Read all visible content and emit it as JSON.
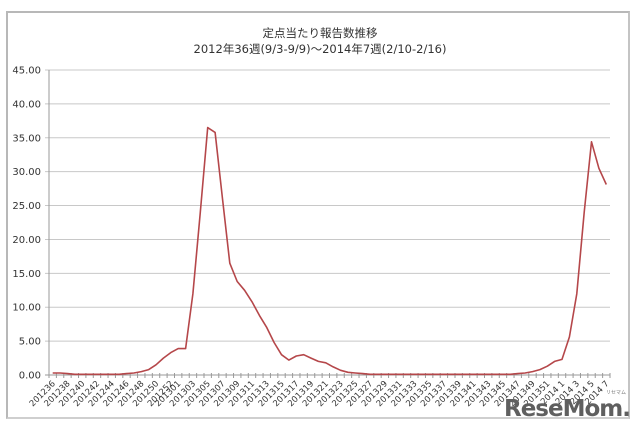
{
  "chart": {
    "title_line1": "定点当たり報告数推移",
    "title_line2": "2012年36週(9/3-9/9)～2014年7週(2/10-2/16)"
  },
  "watermark": {
    "logo_text": "ReseMom.",
    "logo_sub": "リセマム"
  },
  "colors": {
    "line": "#b5474a",
    "grid": "#c8c8c8",
    "axis": "#9a9a9a"
  },
  "chart_data": {
    "type": "line",
    "title": "定点当たり報告数推移 2012年36週(9/3-9/9)～2014年7週(2/10-2/16)",
    "xlabel": "",
    "ylabel": "",
    "ylim": [
      0,
      45
    ],
    "y_ticks": [
      "0.00",
      "5.00",
      "10.00",
      "15.00",
      "20.00",
      "25.00",
      "30.00",
      "35.00",
      "40.00",
      "45.00"
    ],
    "grid": true,
    "legend": "none",
    "x_tick_labels": [
      "201236",
      "201238",
      "201240",
      "201242",
      "201244",
      "201246",
      "201248",
      "201250",
      "201252",
      "201301",
      "201303",
      "201305",
      "201307",
      "201309",
      "201311",
      "201313",
      "201315",
      "201317",
      "201319",
      "201321",
      "201323",
      "201325",
      "201327",
      "201329",
      "201331",
      "201333",
      "201335",
      "201337",
      "201339",
      "201341",
      "201343",
      "201345",
      "201347",
      "201349",
      "201351",
      "2014 1",
      "2014 3",
      "2014 5",
      "2014 7"
    ],
    "categories": [
      "201236",
      "201237",
      "201238",
      "201239",
      "201240",
      "201241",
      "201242",
      "201243",
      "201244",
      "201245",
      "201246",
      "201247",
      "201248",
      "201249",
      "201250",
      "201251",
      "201252",
      "201301",
      "201302",
      "201303",
      "201304",
      "201305",
      "201306",
      "201307",
      "201308",
      "201309",
      "201310",
      "201311",
      "201312",
      "201313",
      "201314",
      "201315",
      "201316",
      "201317",
      "201318",
      "201319",
      "201320",
      "201321",
      "201322",
      "201323",
      "201324",
      "201325",
      "201326",
      "201327",
      "201328",
      "201329",
      "201330",
      "201331",
      "201332",
      "201333",
      "201334",
      "201335",
      "201336",
      "201337",
      "201338",
      "201339",
      "201340",
      "201341",
      "201342",
      "201343",
      "201344",
      "201345",
      "201346",
      "201347",
      "201348",
      "201349",
      "201350",
      "201351",
      "201352",
      "2014 1",
      "2014 2",
      "2014 3",
      "2014 4",
      "2014 5",
      "2014 6",
      "2014 7"
    ],
    "series": [
      {
        "name": "定点当たり報告数",
        "values": [
          0.3,
          0.3,
          0.2,
          0.1,
          0.1,
          0.1,
          0.1,
          0.1,
          0.1,
          0.1,
          0.2,
          0.3,
          0.5,
          0.8,
          1.5,
          2.5,
          3.3,
          3.9,
          3.9,
          12.0,
          24.0,
          36.5,
          35.8,
          26.0,
          16.5,
          13.8,
          12.5,
          10.8,
          8.8,
          7.0,
          4.8,
          3.0,
          2.2,
          2.8,
          3.0,
          2.5,
          2.0,
          1.8,
          1.2,
          0.7,
          0.4,
          0.3,
          0.2,
          0.1,
          0.1,
          0.1,
          0.1,
          0.1,
          0.1,
          0.1,
          0.1,
          0.1,
          0.1,
          0.1,
          0.1,
          0.1,
          0.1,
          0.1,
          0.1,
          0.1,
          0.1,
          0.1,
          0.1,
          0.2,
          0.3,
          0.5,
          0.8,
          1.3,
          2.0,
          2.3,
          5.6,
          12.0,
          24.0,
          34.4,
          30.5,
          28.1
        ]
      }
    ]
  }
}
